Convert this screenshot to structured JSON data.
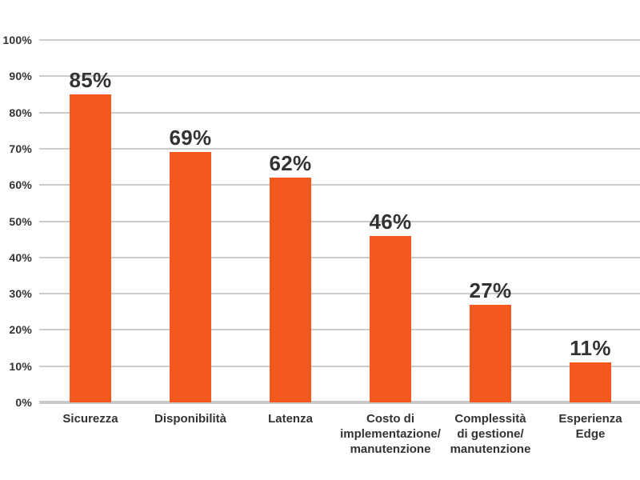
{
  "chart_data": {
    "type": "bar",
    "title": "",
    "xlabel": "",
    "ylabel": "",
    "categories": [
      "Sicurezza",
      "Disponibilità",
      "Latenza",
      "Costo di implementazione/ manutenzione",
      "Complessità di gestione/ manutenzione",
      "Esperienza Edge"
    ],
    "category_lines": [
      [
        "Sicurezza"
      ],
      [
        "Disponibilità"
      ],
      [
        "Latenza"
      ],
      [
        "Costo di",
        "implementazione/",
        "manutenzione"
      ],
      [
        "Complessità",
        "di gestione/",
        "manutenzione"
      ],
      [
        "Esperienza",
        "Edge"
      ]
    ],
    "values": [
      85,
      69,
      62,
      46,
      27,
      11
    ],
    "value_labels": [
      "85%",
      "69%",
      "62%",
      "46%",
      "27%",
      "11%"
    ],
    "y_ticks": [
      "0%",
      "10%",
      "20%",
      "30%",
      "40%",
      "50%",
      "60%",
      "70%",
      "80%",
      "90%",
      "100%"
    ],
    "ylim": [
      0,
      100
    ],
    "grid": true,
    "legend": false,
    "colors": {
      "bar": "#F4581C",
      "text": "#333333",
      "gridline": "#CCCCCC",
      "axis_line": "#C9C9C9",
      "background": "#FFFFFF"
    }
  }
}
